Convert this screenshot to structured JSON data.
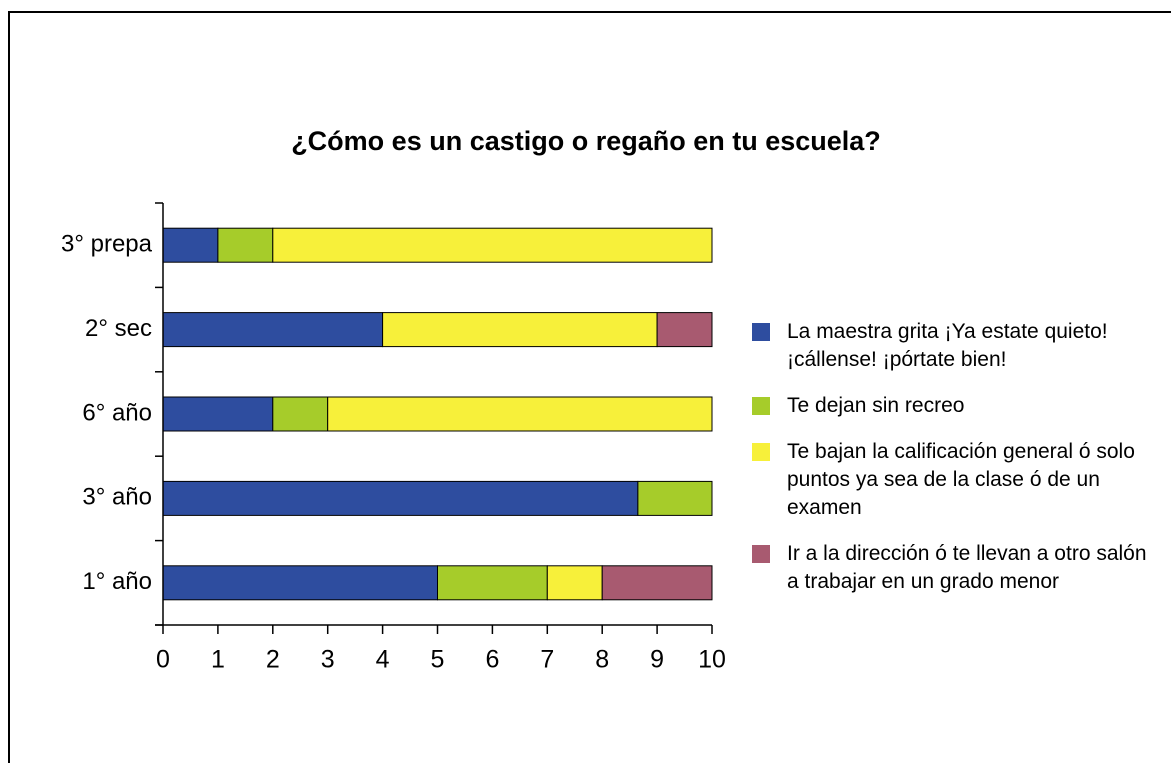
{
  "chart_data": {
    "type": "stacked_barh",
    "title": "¿Cómo es un castigo o regaño en tu escuela?",
    "categories": [
      "3° prepa",
      "2° sec",
      "6° año",
      "3° año",
      "1° año"
    ],
    "series": [
      {
        "name": "La maestra grita ¡Ya estate quieto! ¡cállense! ¡pórtate bien!",
        "color": "#2e4d9f",
        "values": [
          1,
          4,
          2,
          8.65,
          5
        ]
      },
      {
        "name": "Te dejan sin recreo",
        "color": "#a6cc2a",
        "values": [
          1,
          0,
          1,
          1.35,
          2
        ]
      },
      {
        "name": "Te bajan la calificación general ó solo puntos ya sea de la clase ó de un examen",
        "color": "#f7f03a",
        "values": [
          8,
          5,
          7,
          0,
          1
        ]
      },
      {
        "name": "Ir a la dirección ó te llevan a otro salón a trabajar en un grado menor",
        "color": "#a85a70",
        "values": [
          0,
          1,
          0,
          0,
          2
        ]
      }
    ],
    "xlim": [
      0,
      10
    ],
    "xticks": [
      0,
      1,
      2,
      3,
      4,
      5,
      6,
      7,
      8,
      9,
      10
    ]
  }
}
